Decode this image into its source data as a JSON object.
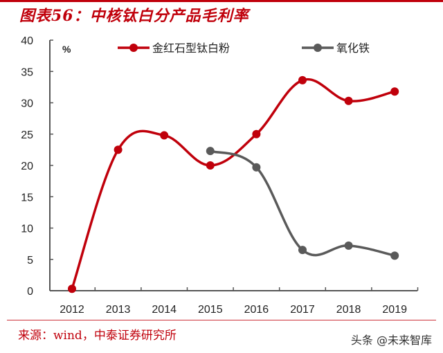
{
  "header": {
    "title": "图表56：中核钛白分产品毛利率"
  },
  "footer": {
    "source": "来源：wind，中泰证券研究所",
    "watermark": "头条 @未来智库"
  },
  "colors": {
    "rutile": "#c0000b",
    "iron_oxide": "#5a5a5a",
    "axis": "#555555",
    "brand": "#c0000b"
  },
  "chart_data": {
    "type": "line",
    "title": "图表56：中核钛白分产品毛利率",
    "xlabel": "",
    "ylabel": "%",
    "ylim": [
      0,
      40
    ],
    "yticks": [
      0,
      5,
      10,
      15,
      20,
      25,
      30,
      35,
      40
    ],
    "categories": [
      "2012",
      "2013",
      "2014",
      "2015",
      "2016",
      "2017",
      "2018",
      "2019"
    ],
    "series": [
      {
        "name": "金红石型钛白粉",
        "color": "#c0000b",
        "values": [
          0.3,
          22.5,
          24.8,
          20.0,
          25.0,
          33.6,
          30.3,
          31.8
        ]
      },
      {
        "name": "氧化铁",
        "color": "#5a5a5a",
        "values": [
          null,
          null,
          null,
          22.3,
          19.7,
          6.5,
          7.2,
          5.6
        ]
      }
    ],
    "grid": false,
    "legend_position": "top",
    "smooth": true
  }
}
